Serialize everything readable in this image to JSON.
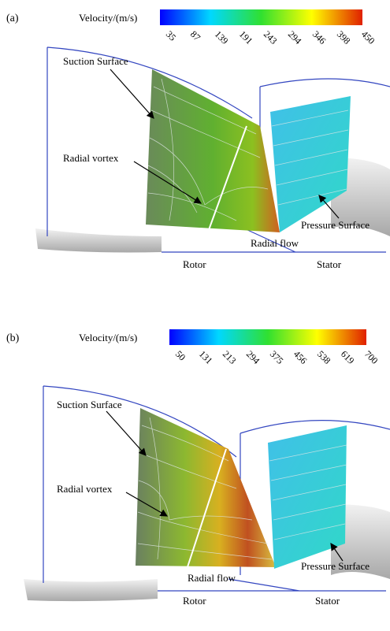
{
  "panels": [
    {
      "label": "(a)",
      "colorbar": {
        "title": "Velocity/(m/s)",
        "ticks": [
          35,
          87,
          139,
          191,
          243,
          294,
          346,
          398,
          450
        ]
      },
      "annotations": {
        "suction": "Suction Surface",
        "vortex": "Radial vortex",
        "pressure": "Pressure Surface",
        "flow": "Radial flow",
        "rotor": "Rotor",
        "stator": "Stator"
      }
    },
    {
      "label": "(b)",
      "colorbar": {
        "title": "Velocity/(m/s)",
        "ticks": [
          50,
          131,
          213,
          294,
          375,
          456,
          538,
          619,
          700
        ]
      },
      "annotations": {
        "suction": "Suction Surface",
        "vortex": "Radial vortex",
        "pressure": "Pressure Surface",
        "flow": "Radial flow",
        "rotor": "Rotor",
        "stator": "Stator"
      }
    }
  ]
}
